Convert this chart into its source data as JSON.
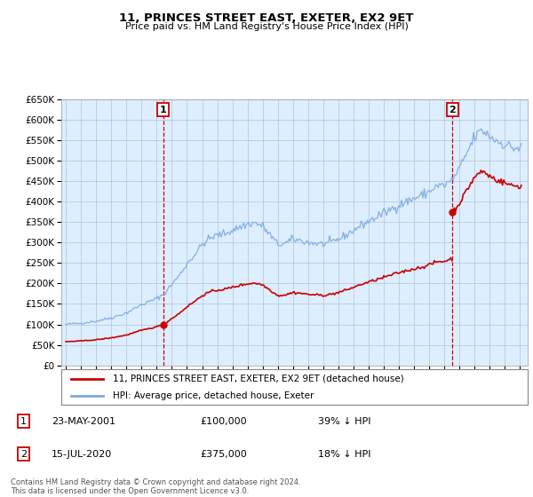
{
  "title": "11, PRINCES STREET EAST, EXETER, EX2 9ET",
  "subtitle": "Price paid vs. HM Land Registry's House Price Index (HPI)",
  "ylim": [
    0,
    650000
  ],
  "ytick_values": [
    0,
    50000,
    100000,
    150000,
    200000,
    250000,
    300000,
    350000,
    400000,
    450000,
    500000,
    550000,
    600000,
    650000
  ],
  "sale1_year": 2001.42,
  "sale1_price": 100000,
  "sale2_year": 2020.54,
  "sale2_price": 375000,
  "legend_line1": "11, PRINCES STREET EAST, EXETER, EX2 9ET (detached house)",
  "legend_line2": "HPI: Average price, detached house, Exeter",
  "ann1_date": "23-MAY-2001",
  "ann1_price": "£100,000",
  "ann1_hpi": "39% ↓ HPI",
  "ann2_date": "15-JUL-2020",
  "ann2_price": "£375,000",
  "ann2_hpi": "18% ↓ HPI",
  "footer": "Contains HM Land Registry data © Crown copyright and database right 2024.\nThis data is licensed under the Open Government Licence v3.0.",
  "red_color": "#cc0000",
  "blue_color": "#7aaadd",
  "bg_color": "#ddeeff",
  "grid_color": "#b0c4d8"
}
